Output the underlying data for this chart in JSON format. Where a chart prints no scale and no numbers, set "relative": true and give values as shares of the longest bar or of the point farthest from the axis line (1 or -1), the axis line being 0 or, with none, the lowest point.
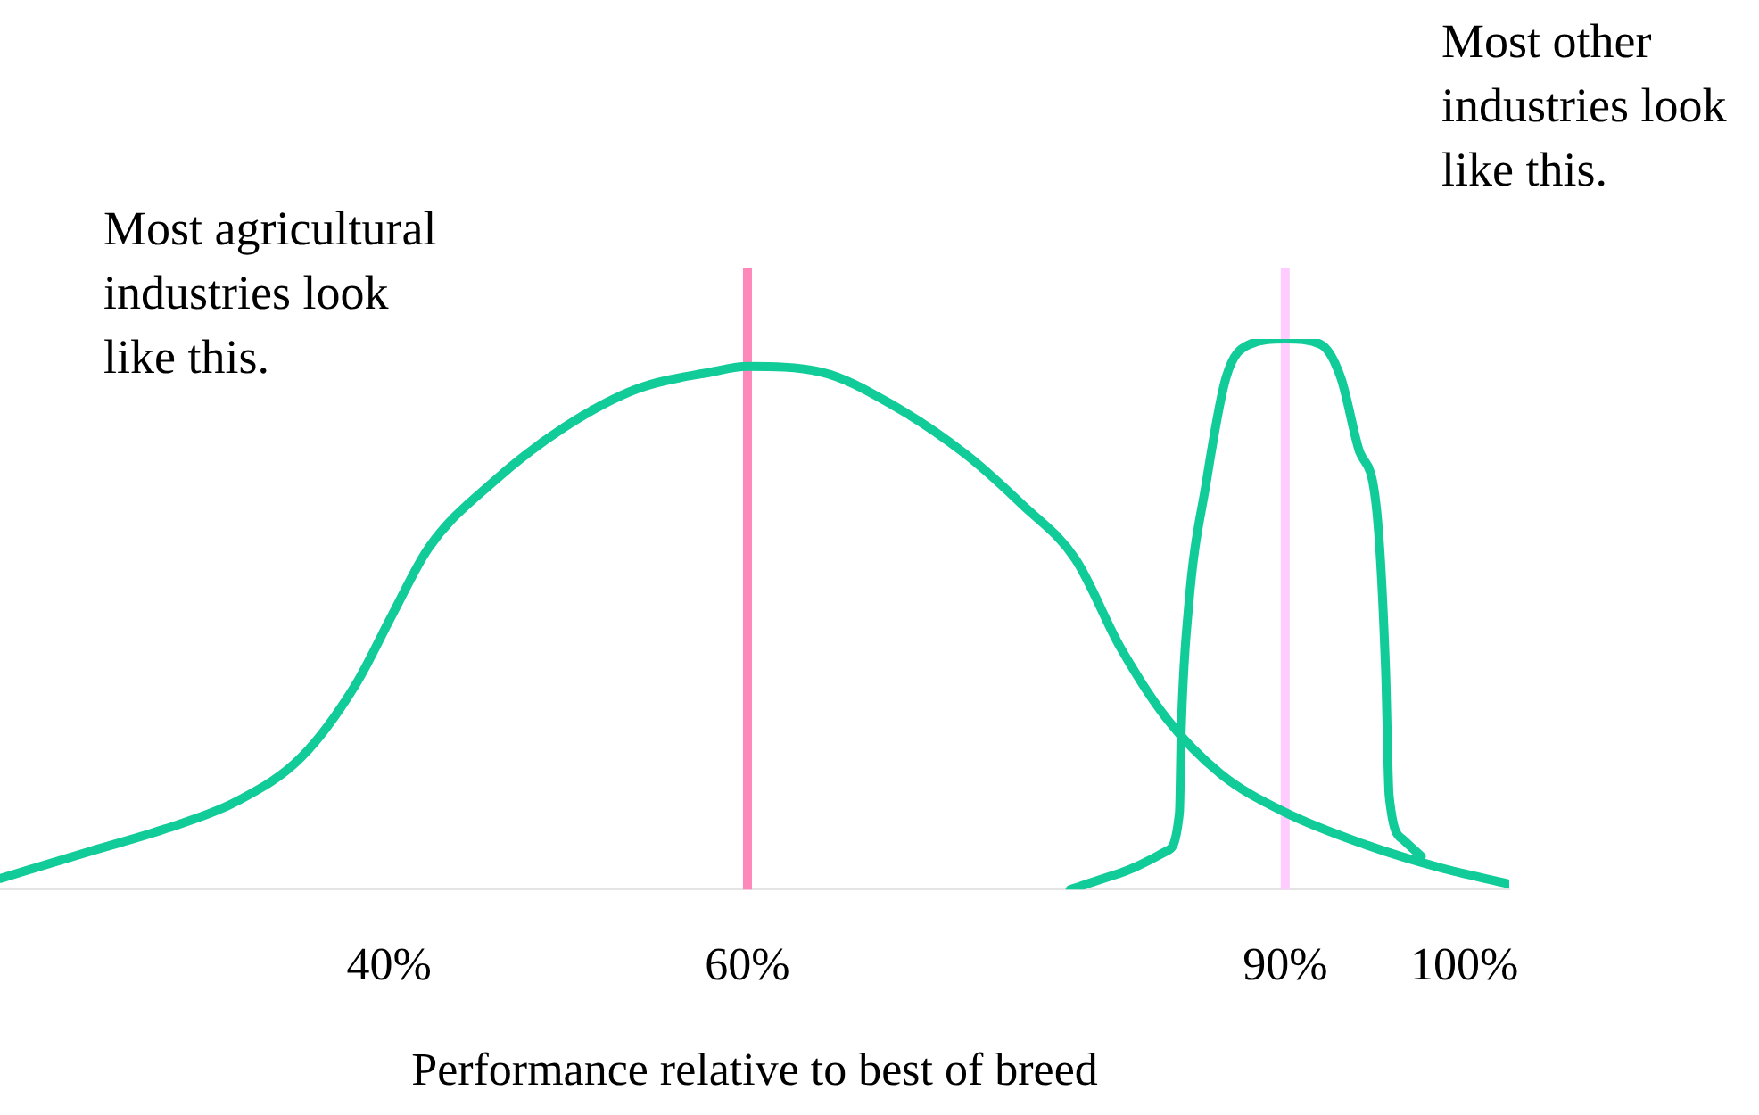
{
  "chart_data": {
    "type": "line",
    "relative": true,
    "xlabel": "Performance relative to best of breed",
    "xlim": [
      18.3,
      102.5
    ],
    "xticks": [
      {
        "value": 40,
        "label": "40%"
      },
      {
        "value": 60,
        "label": "60%"
      },
      {
        "value": 90,
        "label": "90%"
      },
      {
        "value": 100,
        "label": "100%"
      }
    ],
    "series": [
      {
        "color": "#11cc99",
        "x": [
          18.3,
          23.4,
          27.5,
          31.5,
          35.1,
          38.1,
          40.2,
          42.2,
          45.8,
          49.8,
          53.9,
          58.0,
          60,
          64.1,
          68.1,
          72.2,
          75.3,
          78.3,
          80.8,
          83.4,
          86.4,
          90.0,
          94.6,
          98.6,
          102.5
        ],
        "values": [
          0.02,
          0.07,
          0.11,
          0.16,
          0.24,
          0.37,
          0.5,
          0.62,
          0.74,
          0.84,
          0.91,
          0.94,
          0.95,
          0.94,
          0.88,
          0.79,
          0.7,
          0.6,
          0.44,
          0.31,
          0.21,
          0.14,
          0.08,
          0.04,
          0.01
        ]
      },
      {
        "color": "#11cc99",
        "x": [
          78.0,
          80.8,
          83.4,
          84.1,
          84.2,
          84.6,
          85.6,
          86.7,
          88.0,
          90.0,
          92.0,
          93.1,
          94.1,
          95.1,
          95.6,
          95.8,
          96.6,
          97.6
        ],
        "values": [
          0,
          0.03,
          0.07,
          0.14,
          0.29,
          0.51,
          0.74,
          0.93,
          0.99,
          1,
          0.99,
          0.93,
          0.8,
          0.69,
          0.4,
          0.17,
          0.09,
          0.06
        ]
      }
    ],
    "ref_lines": [
      {
        "axis": "x",
        "value": 60,
        "color": "#ff88bb"
      },
      {
        "axis": "x",
        "value": 90,
        "color": "#ffccff"
      }
    ],
    "annotations": [
      "Most agricultural industries look like this.",
      "Most other industries look like this."
    ],
    "grid": false,
    "legend": false,
    "marker": "none",
    "line_style": "solid"
  }
}
